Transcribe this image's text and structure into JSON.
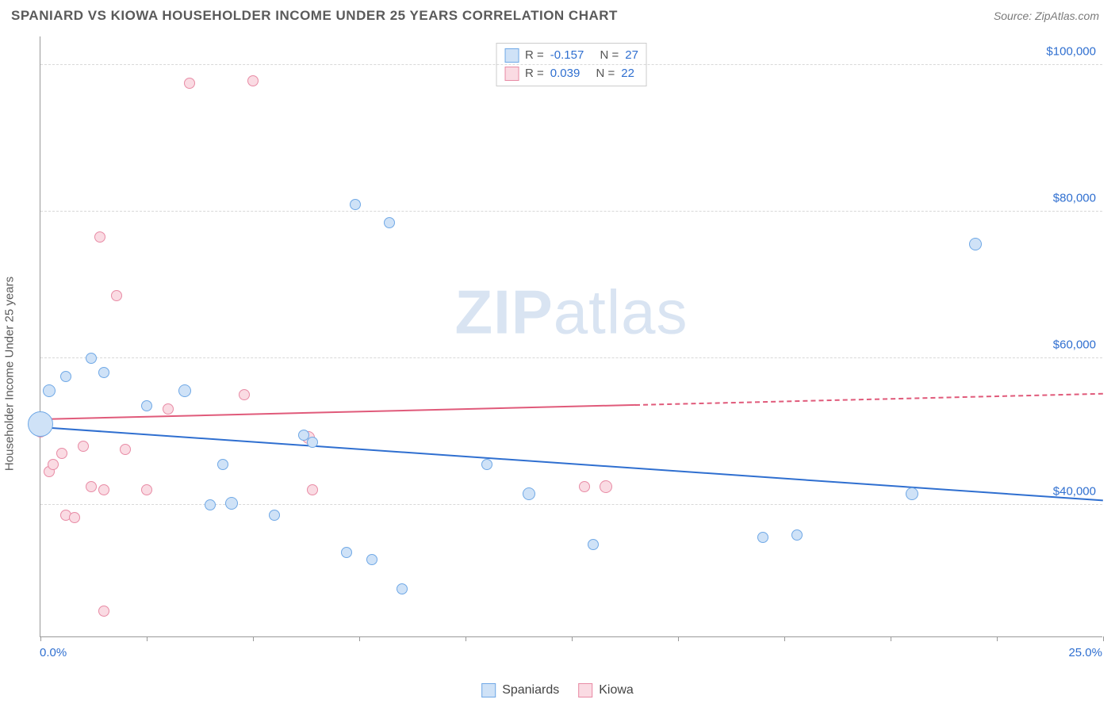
{
  "title": "SPANIARD VS KIOWA HOUSEHOLDER INCOME UNDER 25 YEARS CORRELATION CHART",
  "source": "Source: ZipAtlas.com",
  "ylabel": "Householder Income Under 25 years",
  "watermark_a": "ZIP",
  "watermark_b": "atlas",
  "chart": {
    "type": "scatter",
    "x_domain": [
      0,
      25
    ],
    "y_domain": [
      22000,
      104000
    ],
    "x_axis_label_left": "0.0%",
    "x_axis_label_right": "25.0%",
    "x_ticks": [
      0,
      2.5,
      5,
      7.5,
      10,
      12.5,
      15,
      17.5,
      20,
      22.5,
      25
    ],
    "y_gridlines": [
      40000,
      60000,
      80000,
      100000
    ],
    "y_tick_labels": [
      "$40,000",
      "$60,000",
      "$80,000",
      "$100,000"
    ],
    "grid_color": "#d8d8d8",
    "axis_color": "#999999",
    "tick_label_color": "#2f6fd0",
    "background_color": "#ffffff"
  },
  "series": {
    "spaniards": {
      "label": "Spaniards",
      "fill": "#cfe2f7",
      "stroke": "#6fa8e6",
      "trend_color": "#2f6fd0",
      "R": "-0.157",
      "N": "27",
      "trend": {
        "x1": 0,
        "y1": 50500,
        "x2": 25,
        "y2": 40500,
        "solid_until": 25
      },
      "points": [
        {
          "x": 0.0,
          "y": 51000,
          "r": 16
        },
        {
          "x": 0.2,
          "y": 55500,
          "r": 8
        },
        {
          "x": 0.6,
          "y": 57500,
          "r": 7
        },
        {
          "x": 1.2,
          "y": 60000,
          "r": 7
        },
        {
          "x": 1.5,
          "y": 58000,
          "r": 7
        },
        {
          "x": 2.5,
          "y": 53500,
          "r": 7
        },
        {
          "x": 3.4,
          "y": 55500,
          "r": 8
        },
        {
          "x": 4.3,
          "y": 45500,
          "r": 7
        },
        {
          "x": 4.0,
          "y": 40000,
          "r": 7
        },
        {
          "x": 4.5,
          "y": 40200,
          "r": 8
        },
        {
          "x": 5.5,
          "y": 38500,
          "r": 7
        },
        {
          "x": 6.2,
          "y": 49500,
          "r": 7
        },
        {
          "x": 6.4,
          "y": 48500,
          "r": 7
        },
        {
          "x": 7.2,
          "y": 33500,
          "r": 7
        },
        {
          "x": 7.4,
          "y": 81000,
          "r": 7
        },
        {
          "x": 7.8,
          "y": 32500,
          "r": 7
        },
        {
          "x": 8.2,
          "y": 78500,
          "r": 7
        },
        {
          "x": 8.5,
          "y": 28500,
          "r": 7
        },
        {
          "x": 10.5,
          "y": 45500,
          "r": 7
        },
        {
          "x": 11.5,
          "y": 41500,
          "r": 8
        },
        {
          "x": 13.0,
          "y": 34500,
          "r": 7
        },
        {
          "x": 17.0,
          "y": 35500,
          "r": 7
        },
        {
          "x": 17.8,
          "y": 35800,
          "r": 7
        },
        {
          "x": 20.5,
          "y": 41500,
          "r": 8
        },
        {
          "x": 22.0,
          "y": 75500,
          "r": 8
        }
      ]
    },
    "kiowa": {
      "label": "Kiowa",
      "fill": "#fadbe3",
      "stroke": "#e88ba5",
      "trend_color": "#e05a7a",
      "R": "0.039",
      "N": "22",
      "trend": {
        "x1": 0,
        "y1": 51500,
        "x2": 25,
        "y2": 55000,
        "solid_until": 14
      },
      "points": [
        {
          "x": 0.0,
          "y": 50000,
          "r": 8
        },
        {
          "x": 0.2,
          "y": 44500,
          "r": 7
        },
        {
          "x": 0.3,
          "y": 45500,
          "r": 7
        },
        {
          "x": 0.5,
          "y": 47000,
          "r": 7
        },
        {
          "x": 0.6,
          "y": 38500,
          "r": 7
        },
        {
          "x": 0.8,
          "y": 38200,
          "r": 7
        },
        {
          "x": 1.0,
          "y": 48000,
          "r": 7
        },
        {
          "x": 1.2,
          "y": 42500,
          "r": 7
        },
        {
          "x": 1.4,
          "y": 76500,
          "r": 7
        },
        {
          "x": 1.5,
          "y": 42000,
          "r": 7
        },
        {
          "x": 1.5,
          "y": 25500,
          "r": 7
        },
        {
          "x": 1.8,
          "y": 68500,
          "r": 7
        },
        {
          "x": 2.0,
          "y": 47500,
          "r": 7
        },
        {
          "x": 2.5,
          "y": 42000,
          "r": 7
        },
        {
          "x": 3.0,
          "y": 53000,
          "r": 7
        },
        {
          "x": 3.5,
          "y": 97500,
          "r": 7
        },
        {
          "x": 4.8,
          "y": 55000,
          "r": 7
        },
        {
          "x": 5.0,
          "y": 97800,
          "r": 7
        },
        {
          "x": 6.3,
          "y": 49200,
          "r": 8
        },
        {
          "x": 6.4,
          "y": 42000,
          "r": 7
        },
        {
          "x": 12.8,
          "y": 42500,
          "r": 7
        },
        {
          "x": 13.3,
          "y": 42500,
          "r": 8
        }
      ]
    }
  },
  "legend_top": {
    "r_label": "R =",
    "n_label": "N ="
  }
}
